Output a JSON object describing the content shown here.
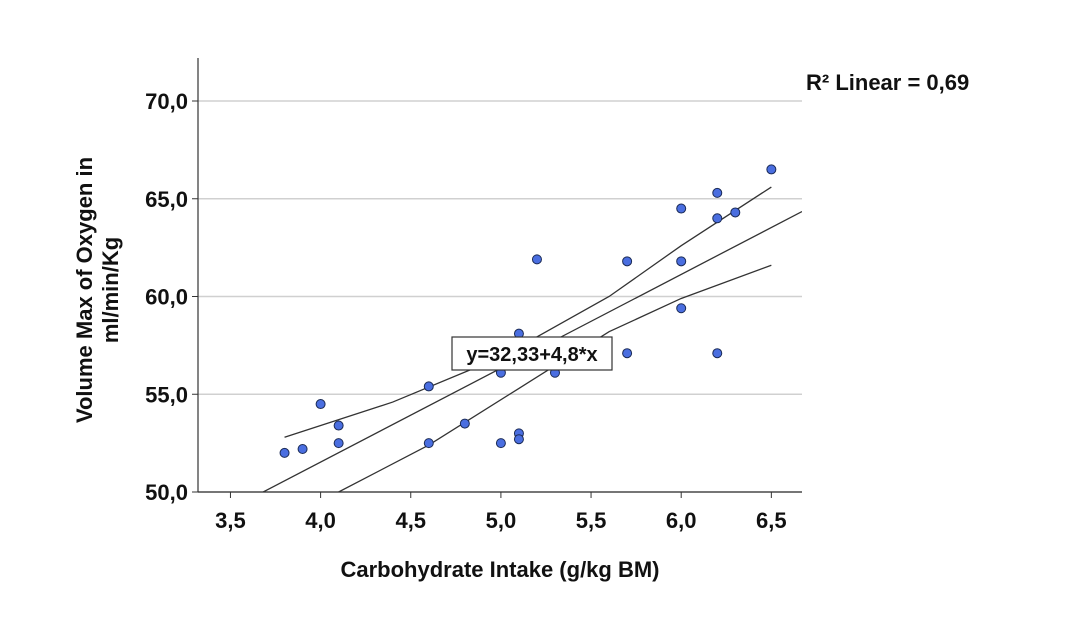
{
  "chart_data": {
    "type": "scatter",
    "x_label": "Carbohydrate Intake (g/kg BM)",
    "y_label": [
      "Volume Max of Oxygen in",
      "ml/min/Kg"
    ],
    "annotation": "R² Linear = 0,69",
    "color": "#4a6ee0",
    "grid": true,
    "xlim": [
      3.32,
      6.67
    ],
    "ylim": [
      50,
      72.2
    ],
    "xticks": [
      {
        "value": 3.5,
        "label": "3,5"
      },
      {
        "value": 4.0,
        "label": "4,0"
      },
      {
        "value": 4.5,
        "label": "4,5"
      },
      {
        "value": 5.0,
        "label": "5,0"
      },
      {
        "value": 5.5,
        "label": "5,5"
      },
      {
        "value": 6.0,
        "label": "6,0"
      },
      {
        "value": 6.5,
        "label": "6,5"
      }
    ],
    "yticks": [
      {
        "value": 50,
        "label": "50,0"
      },
      {
        "value": 55,
        "label": "55,0"
      },
      {
        "value": 60,
        "label": "60,0"
      },
      {
        "value": 65,
        "label": "65,0"
      },
      {
        "value": 70,
        "label": "70,0"
      }
    ],
    "x": [
      3.8,
      3.9,
      4.0,
      4.1,
      4.1,
      4.6,
      4.6,
      4.8,
      5.0,
      5.0,
      5.1,
      5.1,
      5.1,
      5.2,
      5.3,
      5.7,
      5.7,
      6.0,
      6.0,
      6.0,
      6.2,
      6.2,
      6.2,
      6.3,
      6.5
    ],
    "values": [
      52.0,
      52.2,
      54.5,
      53.4,
      52.5,
      55.4,
      52.5,
      53.5,
      52.5,
      56.1,
      53.0,
      52.7,
      58.1,
      61.9,
      56.1,
      61.8,
      57.1,
      64.5,
      61.8,
      59.4,
      65.3,
      64.0,
      57.1,
      64.3,
      66.5
    ],
    "fit": {
      "intercept": 32.33,
      "slope": 4.8,
      "label": "y=32,33+4,8*x"
    },
    "bands": [
      {
        "x": [
          3.8,
          4.4,
          5.0,
          5.6,
          6.0,
          6.5
        ],
        "values": [
          52.8,
          54.6,
          56.9,
          60.0,
          62.6,
          65.6
        ]
      },
      {
        "x": [
          4.1,
          4.6,
          5.1,
          5.6,
          6.0,
          6.5
        ],
        "values": [
          50.0,
          52.4,
          55.3,
          58.2,
          59.9,
          61.6
        ]
      }
    ]
  }
}
